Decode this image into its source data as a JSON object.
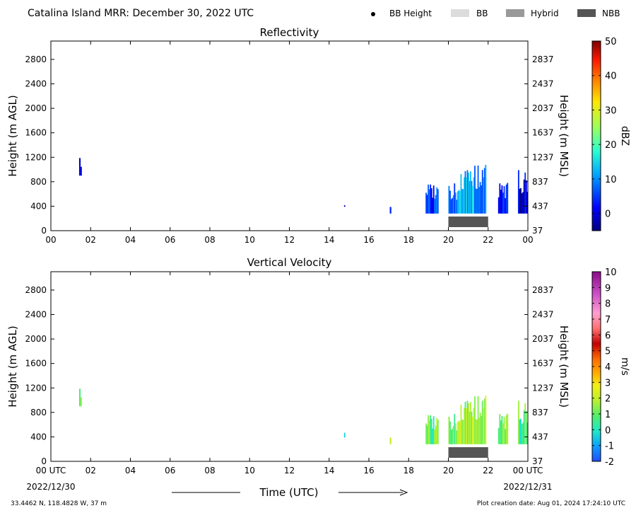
{
  "header": {
    "title": "Catalina Island MRR:  December 30, 2022 UTC",
    "legend": [
      {
        "label": "BB Height",
        "kind": "dot",
        "color": "#000000"
      },
      {
        "label": "BB",
        "kind": "box",
        "color": "#dcdcdc"
      },
      {
        "label": "Hybrid",
        "kind": "box",
        "color": "#999999"
      },
      {
        "label": "NBB",
        "kind": "box",
        "color": "#555555"
      }
    ]
  },
  "footer": {
    "coords": "33.4462 N, 118.4828 W, 37 m",
    "creation": "Plot creation date: Aug 01, 2024 17:24:10 UTC",
    "xlabel": "Time (UTC)",
    "start_date": "2022/12/30",
    "end_date": "2022/12/31"
  },
  "chart_data": [
    {
      "type": "heatmap",
      "title": "Reflectivity",
      "ylabel": "Height (m AGL)",
      "y2label": "Height (m MSL)",
      "x_ticks": [
        "00",
        "02",
        "04",
        "06",
        "08",
        "10",
        "12",
        "14",
        "16",
        "18",
        "20",
        "22",
        "00"
      ],
      "xlim": [
        0,
        24
      ],
      "ylim": [
        0,
        3100
      ],
      "y_ticks": [
        0,
        400,
        800,
        1200,
        1600,
        2000,
        2400,
        2800
      ],
      "y2_ticks": [
        37,
        437,
        837,
        1237,
        1637,
        2037,
        2437,
        2837
      ],
      "colorbar": {
        "label": "dBZ",
        "min": -5,
        "max": 50,
        "ticks": [
          0,
          10,
          20,
          30,
          40,
          50
        ]
      },
      "bb_class_bars": [
        {
          "class": "NBB",
          "start": 20.0,
          "end": 22.0
        }
      ],
      "echoes": [
        {
          "t0": 1.42,
          "t1": 1.55,
          "bottom": 900,
          "top": 1200,
          "value": -1
        },
        {
          "t0": 14.75,
          "t1": 14.8,
          "bottom": 390,
          "top": 420,
          "value": 2
        },
        {
          "t0": 17.05,
          "t1": 17.12,
          "bottom": 280,
          "top": 500,
          "value": 0
        },
        {
          "t0": 18.85,
          "t1": 19.5,
          "bottom": 280,
          "top": 780,
          "value": 5
        },
        {
          "t0": 20.0,
          "t1": 20.5,
          "bottom": 280,
          "top": 780,
          "value": 8
        },
        {
          "t0": 20.5,
          "t1": 21.3,
          "bottom": 280,
          "top": 1000,
          "value": 12
        },
        {
          "t0": 21.3,
          "t1": 21.9,
          "bottom": 280,
          "top": 1150,
          "value": 10
        },
        {
          "t0": 22.5,
          "t1": 23.0,
          "bottom": 280,
          "top": 800,
          "value": 2
        },
        {
          "t0": 23.5,
          "t1": 24.0,
          "bottom": 280,
          "top": 1000,
          "value": 0
        }
      ]
    },
    {
      "type": "heatmap",
      "title": "Vertical Velocity",
      "ylabel": "Height (m AGL)",
      "y2label": "Height (m MSL)",
      "x_ticks": [
        "00 UTC",
        "02",
        "04",
        "06",
        "08",
        "10",
        "12",
        "14",
        "16",
        "18",
        "20",
        "22",
        "00 UTC"
      ],
      "xlim": [
        0,
        24
      ],
      "ylim": [
        0,
        3100
      ],
      "y_ticks": [
        0,
        400,
        800,
        1200,
        1600,
        2000,
        2400,
        2800
      ],
      "y2_ticks": [
        37,
        437,
        837,
        1237,
        1637,
        2037,
        2437,
        2837
      ],
      "colorbar": {
        "label": "m/s",
        "min": -2,
        "max": 10,
        "ticks": [
          -2,
          -1,
          0,
          1,
          2,
          3,
          4,
          5,
          6,
          7,
          8,
          9,
          10
        ]
      },
      "bb_class_bars": [
        {
          "class": "NBB",
          "start": 20.0,
          "end": 22.0
        }
      ],
      "echoes": [
        {
          "t0": 1.42,
          "t1": 1.55,
          "bottom": 900,
          "top": 1200,
          "value": 0.8
        },
        {
          "t0": 14.75,
          "t1": 14.8,
          "bottom": 390,
          "top": 480,
          "value": 0.5
        },
        {
          "t0": 17.05,
          "t1": 17.12,
          "bottom": 280,
          "top": 500,
          "value": 1.2
        },
        {
          "t0": 18.85,
          "t1": 19.5,
          "bottom": 280,
          "top": 780,
          "value": 1.0
        },
        {
          "t0": 20.0,
          "t1": 20.5,
          "bottom": 280,
          "top": 780,
          "value": 1.2
        },
        {
          "t0": 20.5,
          "t1": 21.3,
          "bottom": 280,
          "top": 1000,
          "value": 1.6
        },
        {
          "t0": 21.3,
          "t1": 21.9,
          "bottom": 280,
          "top": 1150,
          "value": 2.0
        },
        {
          "t0": 22.5,
          "t1": 23.0,
          "bottom": 280,
          "top": 800,
          "value": 1.0
        },
        {
          "t0": 23.5,
          "t1": 24.0,
          "bottom": 280,
          "top": 1000,
          "value": 0.8
        }
      ]
    }
  ]
}
